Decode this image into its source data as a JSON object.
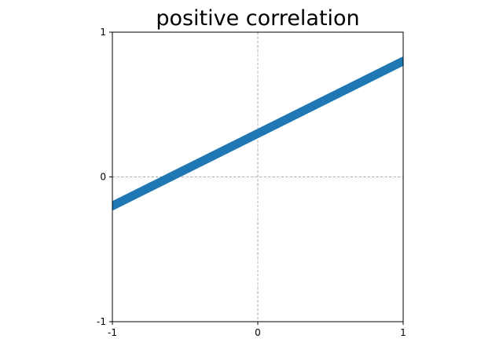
{
  "colors": {
    "background": "#ffffff",
    "line": "#1f77b4",
    "axes": "#000000",
    "grid": "#b0b0b0"
  },
  "chart_data": {
    "type": "line",
    "title": "positive correlation",
    "xlabel": "",
    "ylabel": "",
    "xlim": [
      -1,
      1
    ],
    "ylim": [
      -1,
      1
    ],
    "grid": "dashed lines at x=0 and y=0",
    "legend": "none",
    "x_ticks": [
      -1,
      0,
      1
    ],
    "y_ticks": [
      -1,
      0,
      1
    ],
    "x_tick_labels": [
      "-1",
      "0",
      "1"
    ],
    "y_tick_labels": [
      "-1",
      "0",
      "1"
    ],
    "series": [
      {
        "x": [
          -1,
          1
        ],
        "y": [
          -0.2,
          0.8
        ]
      }
    ]
  }
}
